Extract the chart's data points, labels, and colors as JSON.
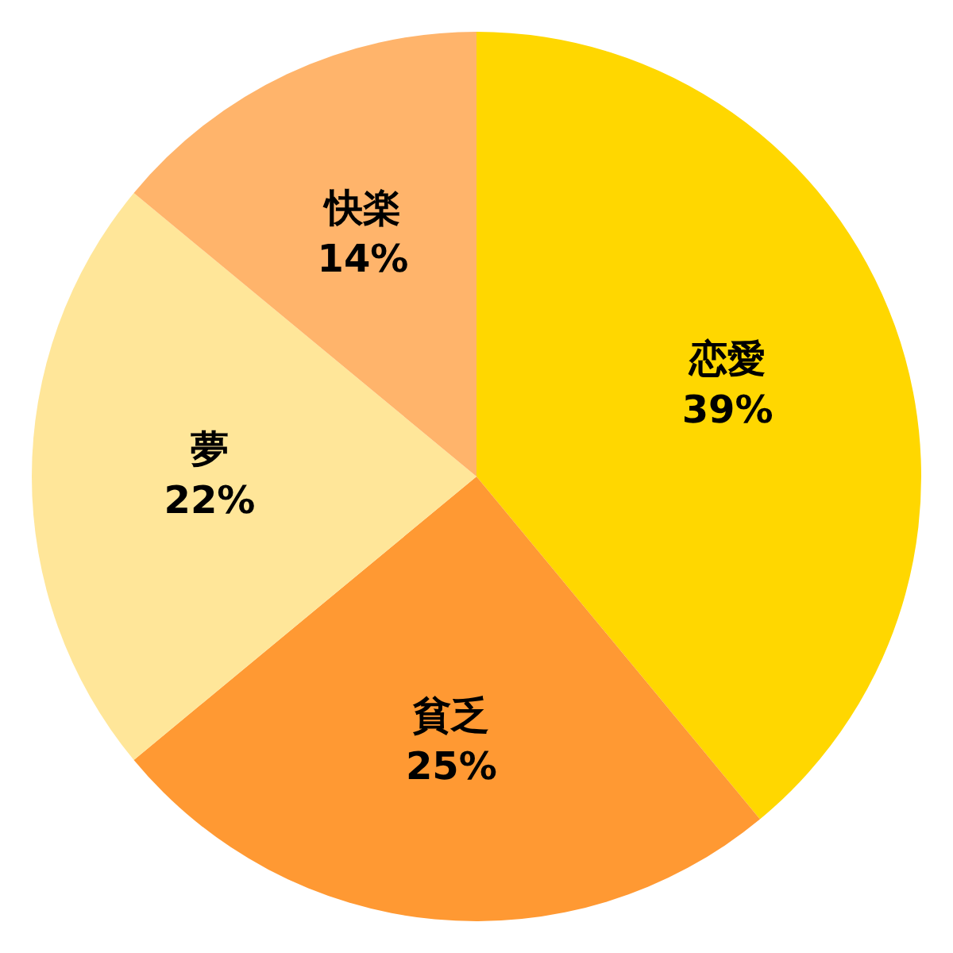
{
  "chart_data": {
    "type": "pie",
    "categories": [
      "恋愛",
      "貧乏",
      "夢",
      "快楽"
    ],
    "values": [
      39,
      25,
      22,
      14
    ],
    "colors": [
      "#ffd700",
      "#ff9933",
      "#ffe699",
      "#ffb46b"
    ],
    "value_labels": [
      "39%",
      "25%",
      "22%",
      "14%"
    ]
  }
}
